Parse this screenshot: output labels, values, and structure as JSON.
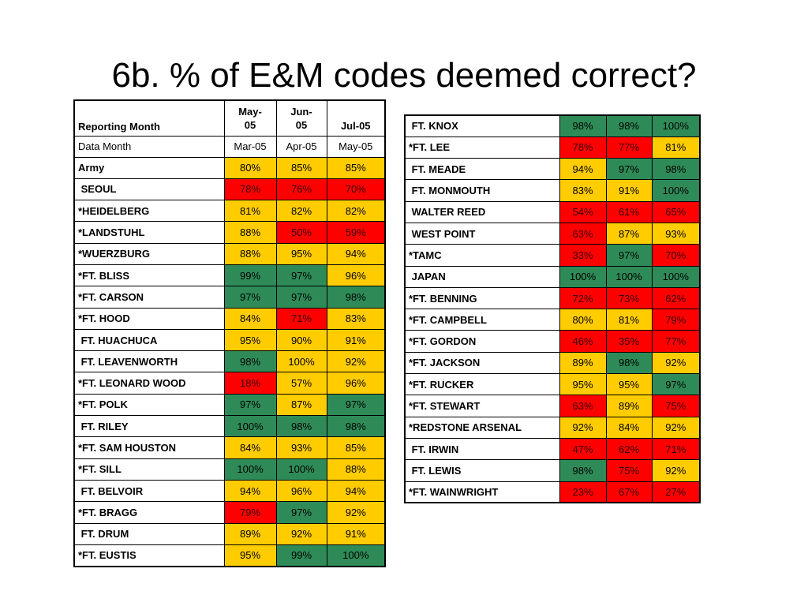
{
  "slide": {
    "title": "6b.  % of E&M codes deemed correct?"
  },
  "colors": {
    "green": "#2e8b57",
    "yellow": "#ffcc00",
    "red": "#ff0000"
  },
  "left_table": {
    "header": {
      "label": "Reporting Month",
      "months": [
        "May-\n05",
        "Jun-\n05",
        "Jul-05"
      ]
    },
    "data_month": {
      "label": "Data Month",
      "months": [
        "Mar-05",
        "Apr-05",
        "May-05"
      ]
    },
    "rows": [
      {
        "name": "Army",
        "values": [
          "80%",
          "85%",
          "85%"
        ],
        "status": [
          "yellow",
          "yellow",
          "yellow"
        ]
      },
      {
        "name": " SEOUL",
        "values": [
          "78%",
          "76%",
          "70%"
        ],
        "status": [
          "red",
          "red",
          "red"
        ]
      },
      {
        "name": "*HEIDELBERG",
        "values": [
          "81%",
          "82%",
          "82%"
        ],
        "status": [
          "yellow",
          "yellow",
          "yellow"
        ]
      },
      {
        "name": "*LANDSTUHL",
        "values": [
          "88%",
          "50%",
          "59%"
        ],
        "status": [
          "yellow",
          "red",
          "red"
        ]
      },
      {
        "name": "*WUERZBURG",
        "values": [
          "88%",
          "95%",
          "94%"
        ],
        "status": [
          "yellow",
          "yellow",
          "yellow"
        ]
      },
      {
        "name": "*FT. BLISS",
        "values": [
          "99%",
          "97%",
          "96%"
        ],
        "status": [
          "green",
          "green",
          "yellow"
        ]
      },
      {
        "name": "*FT. CARSON",
        "values": [
          "97%",
          "97%",
          "98%"
        ],
        "status": [
          "green",
          "green",
          "green"
        ]
      },
      {
        "name": "*FT. HOOD",
        "values": [
          "84%",
          "71%",
          "83%"
        ],
        "status": [
          "yellow",
          "red",
          "yellow"
        ]
      },
      {
        "name": " FT. HUACHUCA",
        "values": [
          "95%",
          "90%",
          "91%"
        ],
        "status": [
          "yellow",
          "yellow",
          "yellow"
        ]
      },
      {
        "name": " FT. LEAVENWORTH",
        "values": [
          "98%",
          "100%",
          "92%"
        ],
        "status": [
          "green",
          "yellow",
          "yellow"
        ]
      },
      {
        "name": "*FT. LEONARD WOOD",
        "values": [
          "18%",
          "57%",
          "96%"
        ],
        "status": [
          "red",
          "yellow",
          "yellow"
        ]
      },
      {
        "name": "*FT. POLK",
        "values": [
          "97%",
          "87%",
          "97%"
        ],
        "status": [
          "green",
          "yellow",
          "green"
        ]
      },
      {
        "name": " FT. RILEY",
        "values": [
          "100%",
          "98%",
          "98%"
        ],
        "status": [
          "green",
          "green",
          "green"
        ]
      },
      {
        "name": "*FT. SAM HOUSTON",
        "values": [
          "84%",
          "93%",
          "85%"
        ],
        "status": [
          "yellow",
          "yellow",
          "yellow"
        ]
      },
      {
        "name": "*FT. SILL",
        "values": [
          "100%",
          "100%",
          "88%"
        ],
        "status": [
          "green",
          "green",
          "yellow"
        ]
      },
      {
        "name": " FT. BELVOIR",
        "values": [
          "94%",
          "96%",
          "94%"
        ],
        "status": [
          "yellow",
          "yellow",
          "yellow"
        ]
      },
      {
        "name": "*FT. BRAGG",
        "values": [
          "79%",
          "97%",
          "92%"
        ],
        "status": [
          "red",
          "green",
          "yellow"
        ]
      },
      {
        "name": " FT. DRUM",
        "values": [
          "89%",
          "92%",
          "91%"
        ],
        "status": [
          "yellow",
          "yellow",
          "yellow"
        ]
      },
      {
        "name": "*FT. EUSTIS",
        "values": [
          "95%",
          "99%",
          "100%"
        ],
        "status": [
          "yellow",
          "green",
          "green"
        ]
      }
    ]
  },
  "right_table": {
    "rows": [
      {
        "name": " FT. KNOX",
        "values": [
          "98%",
          "98%",
          "100%"
        ],
        "status": [
          "green",
          "green",
          "green"
        ]
      },
      {
        "name": "*FT. LEE",
        "values": [
          "78%",
          "77%",
          "81%"
        ],
        "status": [
          "red",
          "red",
          "yellow"
        ]
      },
      {
        "name": " FT. MEADE",
        "values": [
          "94%",
          "97%",
          "98%"
        ],
        "status": [
          "yellow",
          "green",
          "green"
        ]
      },
      {
        "name": " FT. MONMOUTH",
        "values": [
          "83%",
          "91%",
          "100%"
        ],
        "status": [
          "yellow",
          "yellow",
          "green"
        ]
      },
      {
        "name": " WALTER REED",
        "values": [
          "54%",
          "61%",
          "65%"
        ],
        "status": [
          "red",
          "red",
          "red"
        ]
      },
      {
        "name": " WEST POINT",
        "values": [
          "63%",
          "87%",
          "93%"
        ],
        "status": [
          "red",
          "yellow",
          "yellow"
        ]
      },
      {
        "name": "*TAMC",
        "values": [
          "33%",
          "97%",
          "70%"
        ],
        "status": [
          "red",
          "green",
          "red"
        ]
      },
      {
        "name": " JAPAN",
        "values": [
          "100%",
          "100%",
          "100%"
        ],
        "status": [
          "green",
          "green",
          "green"
        ]
      },
      {
        "name": "*FT. BENNING",
        "values": [
          "72%",
          "73%",
          "62%"
        ],
        "status": [
          "red",
          "red",
          "red"
        ]
      },
      {
        "name": "*FT. CAMPBELL",
        "values": [
          "80%",
          "81%",
          "79%"
        ],
        "status": [
          "yellow",
          "yellow",
          "red"
        ]
      },
      {
        "name": "*FT. GORDON",
        "values": [
          "46%",
          "35%",
          "77%"
        ],
        "status": [
          "red",
          "red",
          "red"
        ]
      },
      {
        "name": "*FT. JACKSON",
        "values": [
          "89%",
          "98%",
          "92%"
        ],
        "status": [
          "yellow",
          "green",
          "yellow"
        ]
      },
      {
        "name": "*FT. RUCKER",
        "values": [
          "95%",
          "95%",
          "97%"
        ],
        "status": [
          "yellow",
          "yellow",
          "green"
        ]
      },
      {
        "name": "*FT. STEWART",
        "values": [
          "63%",
          "89%",
          "75%"
        ],
        "status": [
          "red",
          "yellow",
          "red"
        ]
      },
      {
        "name": "*REDSTONE ARSENAL",
        "values": [
          "92%",
          "84%",
          "92%"
        ],
        "status": [
          "yellow",
          "yellow",
          "yellow"
        ]
      },
      {
        "name": " FT. IRWIN",
        "values": [
          "47%",
          "62%",
          "71%"
        ],
        "status": [
          "red",
          "red",
          "red"
        ]
      },
      {
        "name": " FT. LEWIS",
        "values": [
          "98%",
          "75%",
          "92%"
        ],
        "status": [
          "green",
          "red",
          "yellow"
        ]
      },
      {
        "name": "*FT. WAINWRIGHT",
        "values": [
          "23%",
          "67%",
          "27%"
        ],
        "status": [
          "red",
          "red",
          "red"
        ]
      }
    ]
  }
}
